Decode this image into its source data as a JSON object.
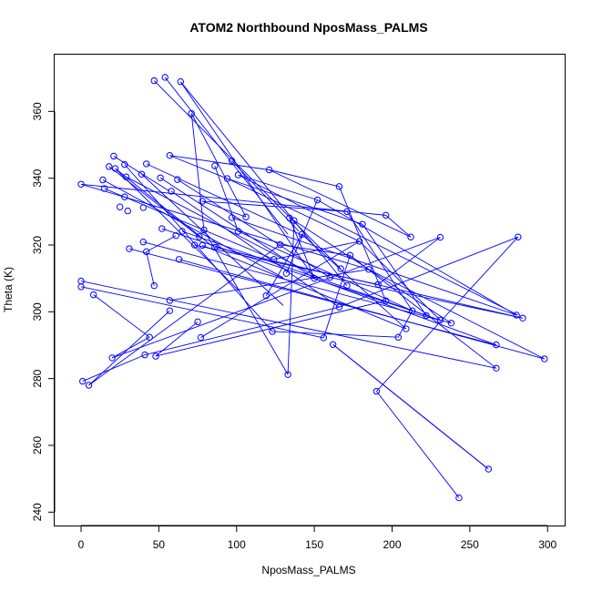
{
  "chart_data": {
    "type": "scatter",
    "title": "ATOM2 Northbound NposMass_PALMS",
    "xlabel": "NposMass_PALMS",
    "ylabel": "Theta (K)",
    "xlim": [
      -17,
      311
    ],
    "ylim": [
      236,
      377
    ],
    "xticks": [
      0,
      50,
      100,
      150,
      200,
      250,
      300
    ],
    "yticks": [
      240,
      260,
      280,
      300,
      320,
      340,
      360
    ],
    "grid": false,
    "legend": "none",
    "color": "#0000ff",
    "connect_points": true,
    "points": [
      {
        "x": 47,
        "y": 369.2
      },
      {
        "x": 54,
        "y": 370.2
      },
      {
        "x": 64,
        "y": 368.9
      },
      {
        "x": 71,
        "y": 359.4
      },
      {
        "x": 57,
        "y": 346.8
      },
      {
        "x": 21,
        "y": 346.6
      },
      {
        "x": 18,
        "y": 343.5
      },
      {
        "x": 22,
        "y": 342.9
      },
      {
        "x": 42,
        "y": 344.3
      },
      {
        "x": 28,
        "y": 344.1
      },
      {
        "x": 14,
        "y": 339.5
      },
      {
        "x": 15,
        "y": 336.9
      },
      {
        "x": 29,
        "y": 340.4
      },
      {
        "x": 39,
        "y": 341.2
      },
      {
        "x": 51,
        "y": 340.1
      },
      {
        "x": 62,
        "y": 339.6
      },
      {
        "x": 58,
        "y": 336.1
      },
      {
        "x": 0,
        "y": 338.2
      },
      {
        "x": 28,
        "y": 334.4
      },
      {
        "x": 25,
        "y": 331.4
      },
      {
        "x": 30,
        "y": 330.2
      },
      {
        "x": 40,
        "y": 331.2
      },
      {
        "x": 86,
        "y": 343.7
      },
      {
        "x": 97,
        "y": 345.2
      },
      {
        "x": 94,
        "y": 339.9
      },
      {
        "x": 101,
        "y": 341.0
      },
      {
        "x": 121,
        "y": 342.5
      },
      {
        "x": 78,
        "y": 333.1
      },
      {
        "x": 76,
        "y": 322.5
      },
      {
        "x": 97,
        "y": 328.2
      },
      {
        "x": 106,
        "y": 328.4
      },
      {
        "x": 101,
        "y": 324.1
      },
      {
        "x": 79,
        "y": 324.5
      },
      {
        "x": 73,
        "y": 320.0
      },
      {
        "x": 78,
        "y": 319.9
      },
      {
        "x": 86,
        "y": 319.3
      },
      {
        "x": 65,
        "y": 324.1
      },
      {
        "x": 61,
        "y": 322.8
      },
      {
        "x": 52,
        "y": 324.9
      },
      {
        "x": 40,
        "y": 320.9
      },
      {
        "x": 31,
        "y": 318.9
      },
      {
        "x": 42,
        "y": 318.0
      },
      {
        "x": 63,
        "y": 315.7
      },
      {
        "x": 47,
        "y": 307.8
      },
      {
        "x": 0,
        "y": 309.2
      },
      {
        "x": 0,
        "y": 307.5
      },
      {
        "x": 8,
        "y": 305.1
      },
      {
        "x": 57,
        "y": 303.4
      },
      {
        "x": 57,
        "y": 300.3
      },
      {
        "x": 75,
        "y": 297.0
      },
      {
        "x": 44,
        "y": 292.4
      },
      {
        "x": 77,
        "y": 292.3
      },
      {
        "x": 20,
        "y": 286.2
      },
      {
        "x": 41,
        "y": 287.1
      },
      {
        "x": 48,
        "y": 286.7
      },
      {
        "x": 1,
        "y": 279.2
      },
      {
        "x": 5,
        "y": 278.0
      },
      {
        "x": 123,
        "y": 294.1
      },
      {
        "x": 133,
        "y": 281.2
      },
      {
        "x": 119,
        "y": 304.8
      },
      {
        "x": 132,
        "y": 311.5
      },
      {
        "x": 124,
        "y": 315.7
      },
      {
        "x": 128,
        "y": 320.1
      },
      {
        "x": 134,
        "y": 328.1
      },
      {
        "x": 137,
        "y": 327.3
      },
      {
        "x": 142,
        "y": 323.2
      },
      {
        "x": 152,
        "y": 333.5
      },
      {
        "x": 166,
        "y": 337.5
      },
      {
        "x": 171,
        "y": 330.0
      },
      {
        "x": 181,
        "y": 326.2
      },
      {
        "x": 196,
        "y": 328.9
      },
      {
        "x": 212,
        "y": 322.4
      },
      {
        "x": 179,
        "y": 321.1
      },
      {
        "x": 173,
        "y": 316.9
      },
      {
        "x": 167,
        "y": 312.9
      },
      {
        "x": 185,
        "y": 312.7
      },
      {
        "x": 160,
        "y": 310.3
      },
      {
        "x": 150,
        "y": 310.0
      },
      {
        "x": 171,
        "y": 307.8
      },
      {
        "x": 191,
        "y": 308.2
      },
      {
        "x": 166,
        "y": 301.4
      },
      {
        "x": 196,
        "y": 303.3
      },
      {
        "x": 213,
        "y": 300.3
      },
      {
        "x": 222,
        "y": 298.9
      },
      {
        "x": 156,
        "y": 292.2
      },
      {
        "x": 162,
        "y": 290.2
      },
      {
        "x": 204,
        "y": 292.4
      },
      {
        "x": 209,
        "y": 294.9
      },
      {
        "x": 231,
        "y": 297.5
      },
      {
        "x": 238,
        "y": 296.6
      },
      {
        "x": 231,
        "y": 322.3
      },
      {
        "x": 281,
        "y": 322.4
      },
      {
        "x": 280,
        "y": 299.0
      },
      {
        "x": 284,
        "y": 298.1
      },
      {
        "x": 267,
        "y": 290.1
      },
      {
        "x": 267,
        "y": 283.1
      },
      {
        "x": 298,
        "y": 285.9
      },
      {
        "x": 190,
        "y": 276.2
      },
      {
        "x": 262,
        "y": 252.9
      },
      {
        "x": 243,
        "y": 244.3
      }
    ],
    "segments": [
      [
        47,
        369.2,
        167,
        312.9
      ],
      [
        54,
        370.2,
        133,
        323.2
      ],
      [
        64,
        368.9,
        171,
        307.8
      ],
      [
        64,
        368.9,
        150,
        310.0
      ],
      [
        71,
        359.4,
        79,
        324.5
      ],
      [
        71,
        359.4,
        106,
        328.4
      ],
      [
        57,
        346.8,
        94,
        339.9
      ],
      [
        57,
        346.8,
        121,
        342.5
      ],
      [
        21,
        346.6,
        57,
        336.1
      ],
      [
        18,
        343.5,
        76,
        322.5
      ],
      [
        22,
        342.9,
        102,
        306.1
      ],
      [
        22,
        342.9,
        84,
        319.8
      ],
      [
        28,
        344.1,
        123,
        294.1
      ],
      [
        42,
        344.3,
        146,
        322.1
      ],
      [
        14,
        339.5,
        130,
        310.2
      ],
      [
        15,
        336.9,
        124,
        315.7
      ],
      [
        0,
        338.2,
        185,
        312.7
      ],
      [
        0,
        338.2,
        196,
        328.9
      ],
      [
        29,
        340.4,
        156,
        309.5
      ],
      [
        39,
        341.2,
        130,
        301.9
      ],
      [
        51,
        340.1,
        150,
        310.0
      ],
      [
        62,
        339.6,
        160,
        310.3
      ],
      [
        58,
        336.1,
        166,
        301.4
      ],
      [
        86,
        343.7,
        101,
        324.1
      ],
      [
        97,
        345.2,
        140,
        324.1
      ],
      [
        94,
        339.9,
        179,
        321.1
      ],
      [
        101,
        341.0,
        281,
        299.0
      ],
      [
        121,
        342.5,
        166,
        337.5
      ],
      [
        121,
        342.5,
        212,
        322.4
      ],
      [
        78,
        333.1,
        106,
        328.4
      ],
      [
        78,
        333.1,
        171,
        330.0
      ],
      [
        97,
        328.2,
        280,
        299.0
      ],
      [
        101,
        324.1,
        213,
        300.3
      ],
      [
        79,
        324.5,
        133,
        281.2
      ],
      [
        73,
        320.0,
        191,
        308.2
      ],
      [
        78,
        319.9,
        209,
        294.9
      ],
      [
        86,
        319.3,
        284,
        298.1
      ],
      [
        65,
        324.1,
        231,
        297.5
      ],
      [
        61,
        322.8,
        42,
        318.0
      ],
      [
        52,
        324.9,
        222,
        298.9
      ],
      [
        40,
        320.9,
        238,
        296.6
      ],
      [
        31,
        318.9,
        267,
        290.1
      ],
      [
        42,
        318.0,
        47,
        307.8
      ],
      [
        63,
        315.7,
        298,
        285.9
      ],
      [
        0,
        309.2,
        267,
        283.1
      ],
      [
        0,
        307.5,
        156,
        292.2
      ],
      [
        8,
        305.1,
        44,
        292.4
      ],
      [
        57,
        303.4,
        185,
        312.7
      ],
      [
        57,
        300.3,
        5,
        278.0
      ],
      [
        75,
        297.0,
        48,
        286.7
      ],
      [
        44,
        292.4,
        20,
        286.2
      ],
      [
        77,
        292.3,
        179,
        321.1
      ],
      [
        20,
        286.2,
        231,
        322.3
      ],
      [
        41,
        287.1,
        166,
        301.4
      ],
      [
        48,
        286.7,
        196,
        303.3
      ],
      [
        1,
        279.2,
        41,
        287.1
      ],
      [
        5,
        278.0,
        128,
        320.1
      ],
      [
        123,
        294.1,
        204,
        292.4
      ],
      [
        133,
        281.2,
        137,
        327.3
      ],
      [
        119,
        304.8,
        142,
        323.2
      ],
      [
        132,
        311.5,
        152,
        333.5
      ],
      [
        124,
        315.7,
        179,
        321.1
      ],
      [
        128,
        320.1,
        173,
        316.9
      ],
      [
        134,
        328.1,
        150,
        310.0
      ],
      [
        162,
        290.2,
        262,
        252.9
      ],
      [
        162,
        290.2,
        260,
        253.6
      ],
      [
        190,
        276.2,
        281,
        322.4
      ],
      [
        190,
        276.2,
        243,
        244.3
      ],
      [
        156,
        292.2,
        173,
        316.9
      ],
      [
        166,
        301.4,
        281,
        322.4
      ],
      [
        173,
        316.9,
        267,
        283.1
      ],
      [
        191,
        308.2,
        231,
        322.3
      ],
      [
        196,
        328.9,
        212,
        322.4
      ],
      [
        171,
        330.0,
        213,
        300.3
      ],
      [
        137,
        327.3,
        238,
        296.6
      ],
      [
        142,
        323.2,
        209,
        294.9
      ],
      [
        152,
        333.5,
        280,
        299.0
      ],
      [
        166,
        337.5,
        196,
        303.3
      ],
      [
        181,
        326.2,
        222,
        298.9
      ],
      [
        179,
        321.1,
        231,
        297.5
      ],
      [
        150,
        310.0,
        267,
        290.1
      ],
      [
        160,
        310.3,
        284,
        298.1
      ],
      [
        185,
        312.7,
        298,
        285.9
      ],
      [
        204,
        292.4,
        213,
        300.3
      ],
      [
        101,
        341.0,
        152,
        333.5
      ],
      [
        94,
        339.9,
        181,
        326.2
      ]
    ]
  }
}
